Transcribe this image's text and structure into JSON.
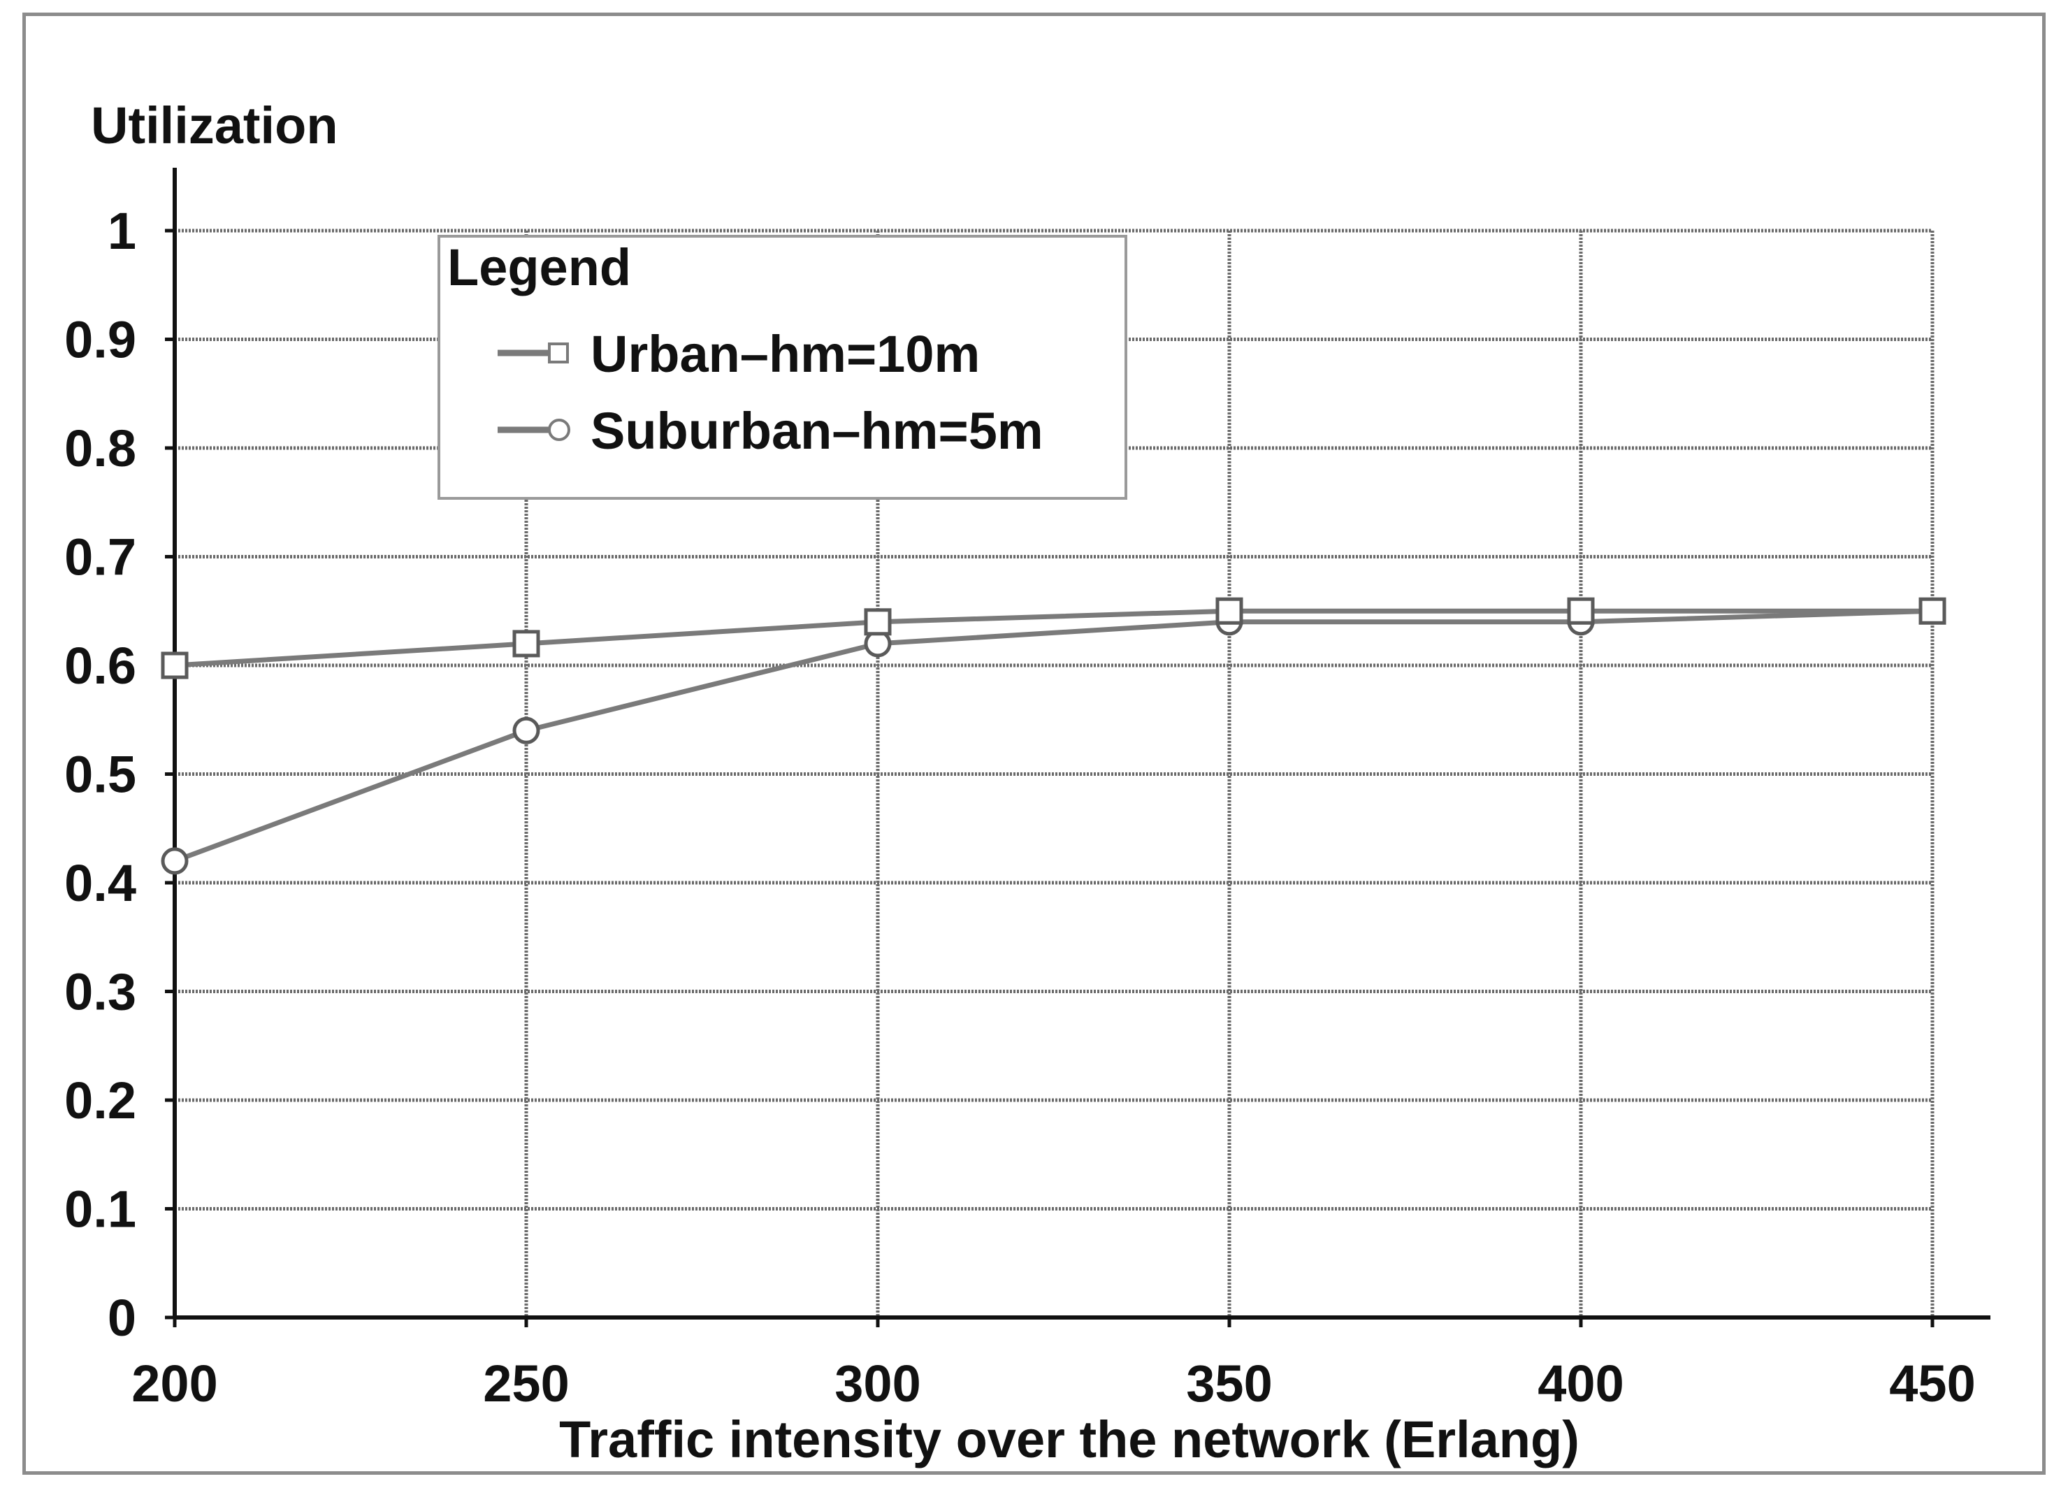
{
  "chart_data": {
    "type": "line",
    "title": "",
    "xlabel": "Traffic intensity over the network (Erlang)",
    "ylabel": "Utilization",
    "x": [
      200,
      250,
      300,
      350,
      400,
      450
    ],
    "x_ticks": [
      "200",
      "250",
      "300",
      "350",
      "400",
      "450"
    ],
    "y_ticks": [
      "0",
      "0.1",
      "0.2",
      "0.3",
      "0.4",
      "0.5",
      "0.6",
      "0.7",
      "0.8",
      "0.9",
      "1"
    ],
    "xlim": [
      200,
      450
    ],
    "ylim": [
      0,
      1
    ],
    "grid": true,
    "legend": {
      "title": "Legend",
      "placement": "top-left"
    },
    "series": [
      {
        "name": "Urban–hm=10m",
        "marker": "square",
        "color": "#7a7a7a",
        "values": [
          0.6,
          0.62,
          0.64,
          0.65,
          0.65,
          0.65
        ]
      },
      {
        "name": "Suburban–hm=5m",
        "marker": "circle",
        "color": "#7a7a7a",
        "values": [
          0.42,
          0.54,
          0.62,
          0.64,
          0.64,
          0.65
        ]
      }
    ]
  }
}
